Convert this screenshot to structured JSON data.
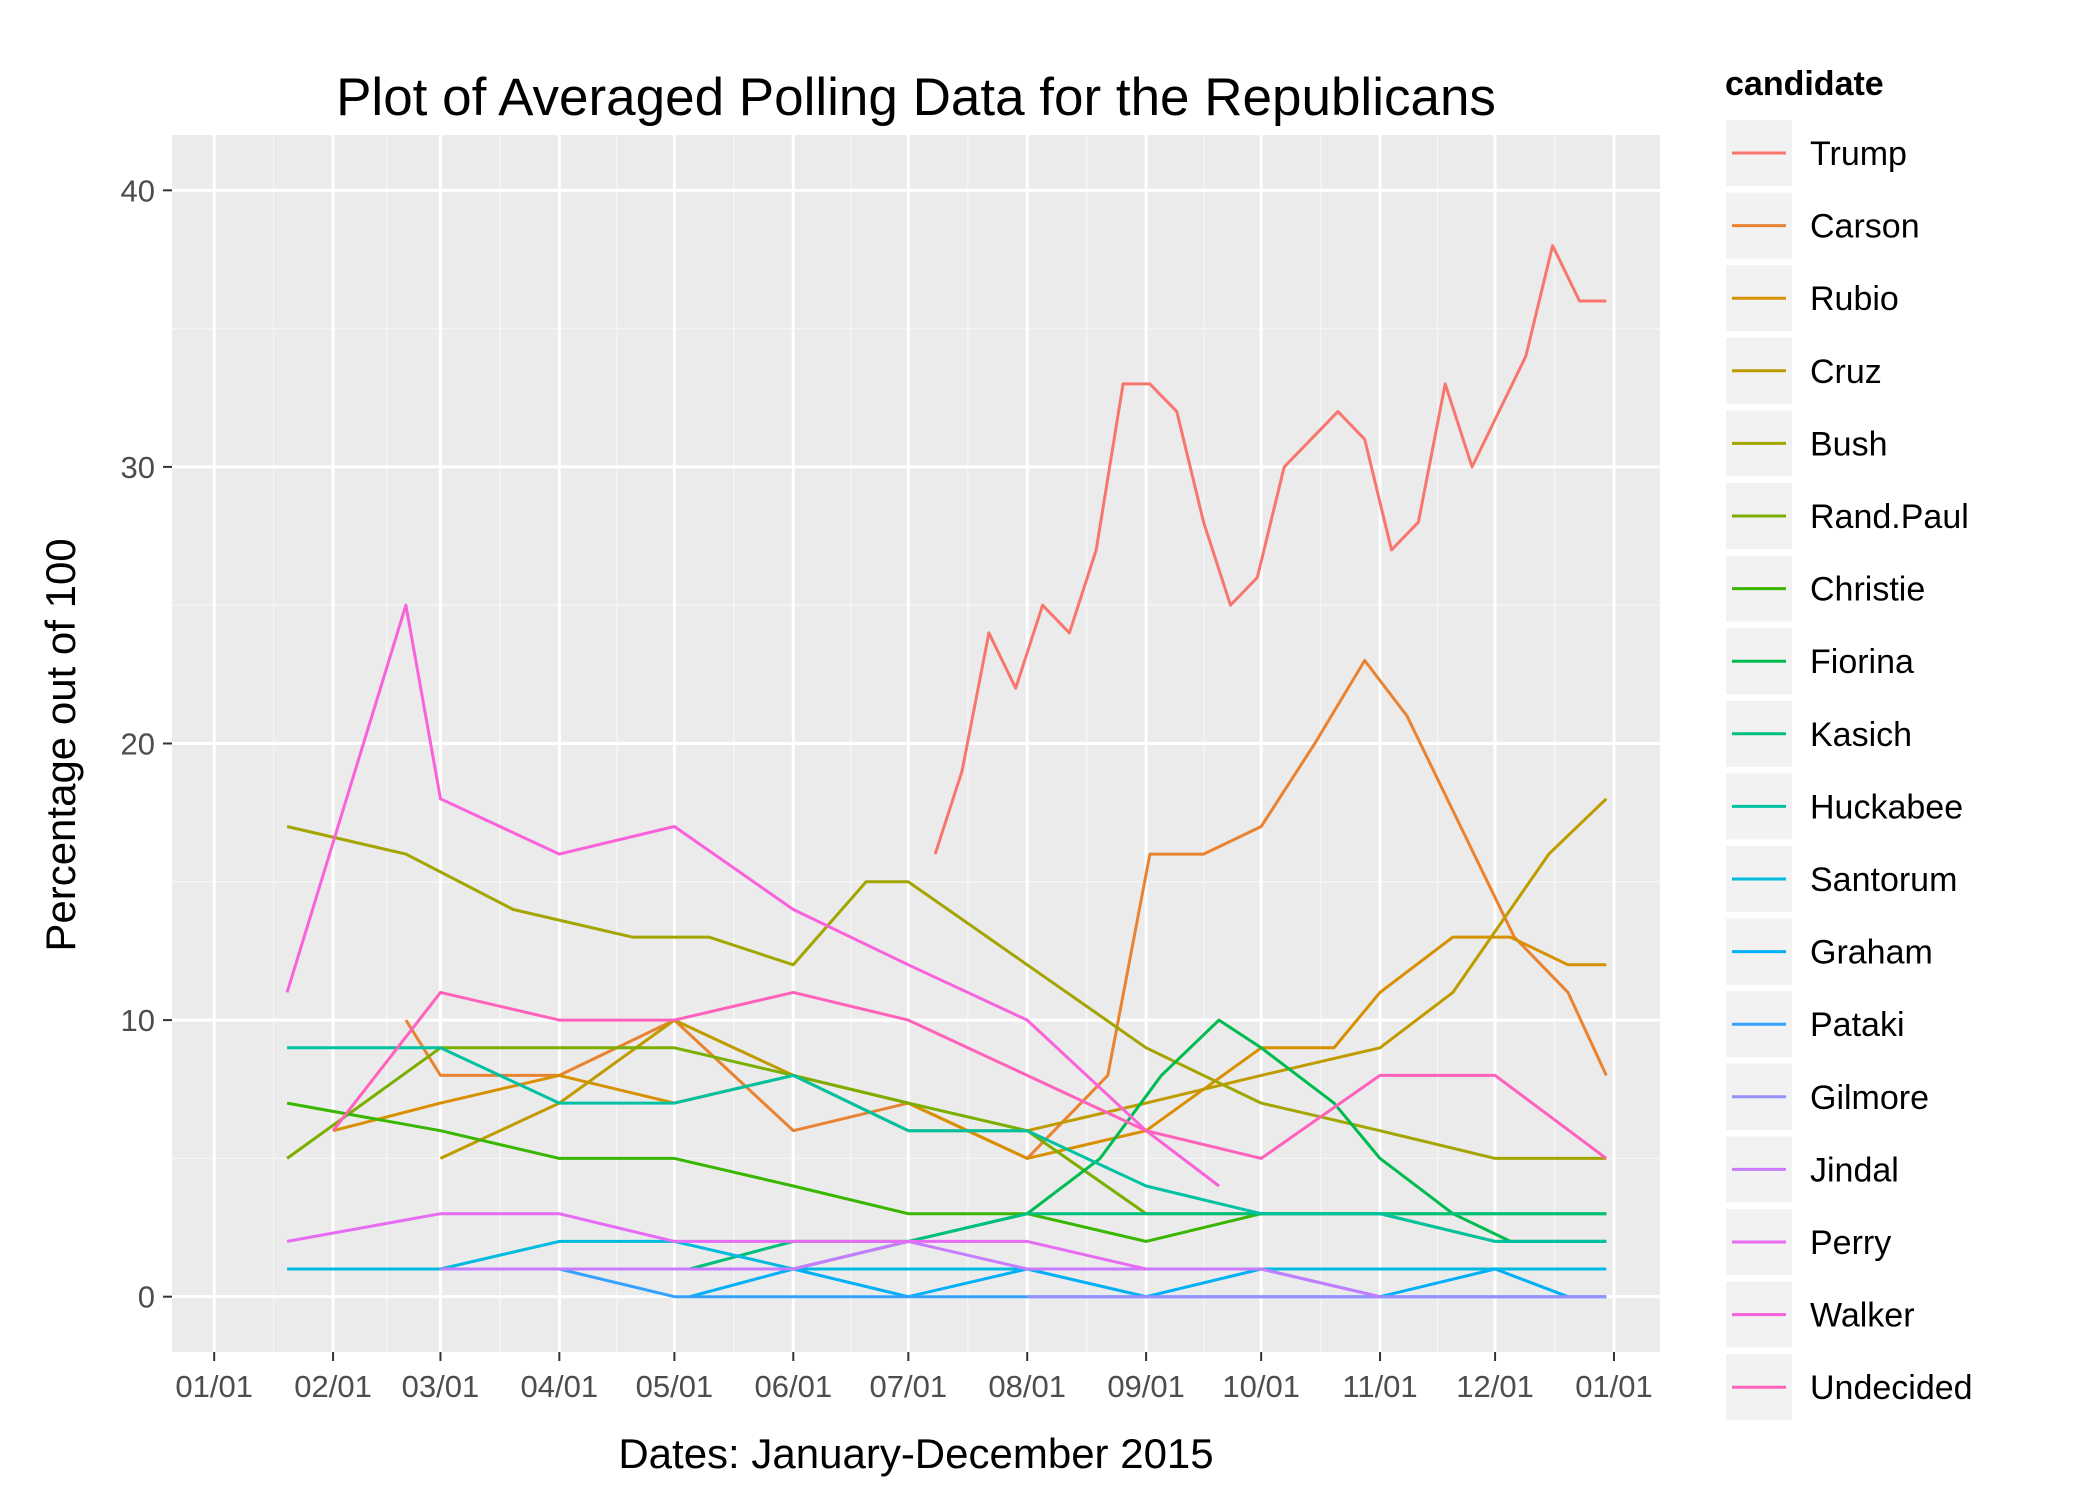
{
  "chart_data": {
    "type": "line",
    "title": "Plot of Averaged Polling Data for the Republicans",
    "xlabel": "Dates: January-December 2015",
    "ylabel": "Percentage out of 100",
    "x_range": [
      "2014-12-21",
      "2016-01-13"
    ],
    "ylim": [
      -2,
      42
    ],
    "x_ticks": [
      {
        "date": "2015-01-01",
        "label": "01/01"
      },
      {
        "date": "2015-02-01",
        "label": "02/01"
      },
      {
        "date": "2015-03-01",
        "label": "03/01"
      },
      {
        "date": "2015-04-01",
        "label": "04/01"
      },
      {
        "date": "2015-05-01",
        "label": "05/01"
      },
      {
        "date": "2015-06-01",
        "label": "06/01"
      },
      {
        "date": "2015-07-01",
        "label": "07/01"
      },
      {
        "date": "2015-08-01",
        "label": "08/01"
      },
      {
        "date": "2015-09-01",
        "label": "09/01"
      },
      {
        "date": "2015-10-01",
        "label": "10/01"
      },
      {
        "date": "2015-11-01",
        "label": "11/01"
      },
      {
        "date": "2015-12-01",
        "label": "12/01"
      },
      {
        "date": "2016-01-01",
        "label": "01/01"
      }
    ],
    "y_ticks": [
      0,
      10,
      20,
      30,
      40
    ],
    "grid": true,
    "legend": {
      "title": "candidate",
      "position": "right"
    },
    "series": [
      {
        "name": "Trump",
        "color": "#F8766D",
        "x": [
          "2015-07-08",
          "2015-07-15",
          "2015-07-22",
          "2015-07-29",
          "2015-08-05",
          "2015-08-12",
          "2015-08-19",
          "2015-08-26",
          "2015-09-02",
          "2015-09-09",
          "2015-09-16",
          "2015-09-23",
          "2015-09-30",
          "2015-10-07",
          "2015-10-14",
          "2015-10-21",
          "2015-10-28",
          "2015-11-04",
          "2015-11-11",
          "2015-11-18",
          "2015-11-25",
          "2015-12-02",
          "2015-12-09",
          "2015-12-16",
          "2015-12-23",
          "2015-12-30"
        ],
        "values": [
          16,
          19,
          24,
          22,
          25,
          24,
          27,
          33,
          33,
          32,
          28,
          25,
          26,
          30,
          31,
          32,
          31,
          27,
          28,
          33,
          30,
          32,
          34,
          38,
          36,
          36
        ]
      },
      {
        "name": "Carson",
        "color": "#EA8331",
        "x": [
          "2015-02-20",
          "2015-03-01",
          "2015-04-01",
          "2015-05-01",
          "2015-06-01",
          "2015-07-01",
          "2015-08-01",
          "2015-08-22",
          "2015-09-02",
          "2015-09-16",
          "2015-10-01",
          "2015-10-15",
          "2015-10-28",
          "2015-11-08",
          "2015-11-22",
          "2015-12-06",
          "2015-12-20",
          "2015-12-30"
        ],
        "values": [
          10,
          8,
          8,
          10,
          6,
          7,
          5,
          8,
          16,
          16,
          17,
          20,
          23,
          21,
          17,
          13,
          11,
          8
        ]
      },
      {
        "name": "Rubio",
        "color": "#D89000",
        "x": [
          "2015-02-01",
          "2015-03-01",
          "2015-04-01",
          "2015-05-01",
          "2015-06-01",
          "2015-07-01",
          "2015-08-01",
          "2015-09-01",
          "2015-10-01",
          "2015-10-20",
          "2015-11-01",
          "2015-11-20",
          "2015-12-05",
          "2015-12-20",
          "2015-12-30"
        ],
        "values": [
          6,
          7,
          8,
          7,
          8,
          7,
          5,
          6,
          9,
          9,
          11,
          13,
          13,
          12,
          12
        ]
      },
      {
        "name": "Cruz",
        "color": "#C09B00",
        "x": [
          "2015-03-01",
          "2015-04-01",
          "2015-05-01",
          "2015-06-01",
          "2015-07-01",
          "2015-08-01",
          "2015-09-01",
          "2015-10-01",
          "2015-11-01",
          "2015-11-20",
          "2015-12-05",
          "2015-12-15",
          "2015-12-30"
        ],
        "values": [
          5,
          7,
          10,
          8,
          6,
          6,
          7,
          8,
          9,
          11,
          14,
          16,
          18
        ]
      },
      {
        "name": "Bush",
        "color": "#A3A500",
        "x": [
          "2015-01-20",
          "2015-02-20",
          "2015-03-20",
          "2015-04-20",
          "2015-05-10",
          "2015-06-01",
          "2015-06-20",
          "2015-07-01",
          "2015-08-01",
          "2015-09-01",
          "2015-10-01",
          "2015-11-01",
          "2015-12-01",
          "2015-12-30"
        ],
        "values": [
          17,
          16,
          14,
          13,
          13,
          12,
          15,
          15,
          12,
          9,
          7,
          6,
          5,
          5
        ]
      },
      {
        "name": "Rand.Paul",
        "color": "#7CAE00",
        "x": [
          "2015-01-20",
          "2015-03-01",
          "2015-04-01",
          "2015-05-01",
          "2015-06-01",
          "2015-07-01",
          "2015-08-01",
          "2015-09-01",
          "2015-10-01",
          "2015-11-01",
          "2015-12-01",
          "2015-12-30"
        ],
        "values": [
          5,
          9,
          9,
          9,
          8,
          7,
          6,
          3,
          3,
          3,
          2,
          2
        ]
      },
      {
        "name": "Christie",
        "color": "#39B600",
        "x": [
          "2015-01-20",
          "2015-03-01",
          "2015-04-01",
          "2015-05-01",
          "2015-06-01",
          "2015-07-01",
          "2015-08-01",
          "2015-09-01",
          "2015-10-01",
          "2015-11-01",
          "2015-12-01",
          "2015-12-30"
        ],
        "values": [
          7,
          6,
          5,
          5,
          4,
          3,
          3,
          2,
          3,
          3,
          3,
          3
        ]
      },
      {
        "name": "Fiorina",
        "color": "#00BB4E",
        "x": [
          "2015-05-05",
          "2015-06-01",
          "2015-07-01",
          "2015-08-01",
          "2015-08-20",
          "2015-09-05",
          "2015-09-20",
          "2015-10-01",
          "2015-10-20",
          "2015-11-01",
          "2015-11-20",
          "2015-12-05",
          "2015-12-30"
        ],
        "values": [
          1,
          1,
          2,
          3,
          5,
          8,
          10,
          9,
          7,
          5,
          3,
          2,
          2
        ]
      },
      {
        "name": "Kasich",
        "color": "#00BF7D",
        "x": [
          "2015-05-05",
          "2015-06-01",
          "2015-07-01",
          "2015-08-01",
          "2015-09-01",
          "2015-10-01",
          "2015-11-01",
          "2015-12-01",
          "2015-12-30"
        ],
        "values": [
          1,
          2,
          2,
          3,
          3,
          3,
          3,
          3,
          3
        ]
      },
      {
        "name": "Huckabee",
        "color": "#00C1A3",
        "x": [
          "2015-01-20",
          "2015-03-01",
          "2015-04-01",
          "2015-05-01",
          "2015-06-01",
          "2015-07-01",
          "2015-08-01",
          "2015-09-01",
          "2015-10-01",
          "2015-11-01",
          "2015-12-01",
          "2015-12-30"
        ],
        "values": [
          9,
          9,
          7,
          7,
          8,
          6,
          6,
          4,
          3,
          3,
          2,
          2
        ]
      },
      {
        "name": "Santorum",
        "color": "#00BAE0",
        "x": [
          "2015-01-20",
          "2015-03-01",
          "2015-04-01",
          "2015-05-01",
          "2015-06-01",
          "2015-07-01",
          "2015-08-01",
          "2015-09-01",
          "2015-10-01",
          "2015-11-01",
          "2015-12-01",
          "2015-12-30"
        ],
        "values": [
          1,
          1,
          2,
          2,
          1,
          1,
          1,
          1,
          1,
          1,
          1,
          1
        ]
      },
      {
        "name": "Graham",
        "color": "#00B0F6",
        "x": [
          "2015-05-05",
          "2015-06-01",
          "2015-07-01",
          "2015-08-01",
          "2015-09-01",
          "2015-10-01",
          "2015-11-01",
          "2015-12-01",
          "2015-12-20"
        ],
        "values": [
          0,
          1,
          0,
          1,
          0,
          1,
          0,
          1,
          0
        ]
      },
      {
        "name": "Pataki",
        "color": "#35A2FF",
        "x": [
          "2015-04-01",
          "2015-05-01",
          "2015-06-01",
          "2015-07-01",
          "2015-08-01",
          "2015-09-01",
          "2015-10-01",
          "2015-11-01",
          "2015-12-01",
          "2015-12-30"
        ],
        "values": [
          1,
          0,
          0,
          0,
          0,
          0,
          0,
          0,
          0,
          0
        ]
      },
      {
        "name": "Gilmore",
        "color": "#9590FF",
        "x": [
          "2015-08-01",
          "2015-09-01",
          "2015-10-01",
          "2015-11-01",
          "2015-12-01",
          "2015-12-30"
        ],
        "values": [
          0,
          0,
          0,
          0,
          0,
          0
        ]
      },
      {
        "name": "Jindal",
        "color": "#C77CFF",
        "x": [
          "2015-03-01",
          "2015-04-01",
          "2015-05-01",
          "2015-06-01",
          "2015-07-01",
          "2015-08-01",
          "2015-09-01",
          "2015-10-01",
          "2015-11-01"
        ],
        "values": [
          1,
          1,
          1,
          1,
          2,
          1,
          1,
          1,
          0
        ]
      },
      {
        "name": "Perry",
        "color": "#E76BF3",
        "x": [
          "2015-01-20",
          "2015-03-01",
          "2015-04-01",
          "2015-05-01",
          "2015-06-01",
          "2015-07-01",
          "2015-08-01",
          "2015-09-01"
        ],
        "values": [
          2,
          3,
          3,
          2,
          2,
          2,
          2,
          1
        ]
      },
      {
        "name": "Walker",
        "color": "#FA62DB",
        "x": [
          "2015-01-20",
          "2015-02-20",
          "2015-03-01",
          "2015-04-01",
          "2015-05-01",
          "2015-06-01",
          "2015-07-01",
          "2015-08-01",
          "2015-09-01",
          "2015-09-20"
        ],
        "values": [
          11,
          25,
          18,
          16,
          17,
          14,
          12,
          10,
          6,
          4
        ]
      },
      {
        "name": "Undecided",
        "color": "#FF62BC",
        "x": [
          "2015-02-01",
          "2015-03-01",
          "2015-04-01",
          "2015-05-01",
          "2015-06-01",
          "2015-07-01",
          "2015-08-01",
          "2015-09-01",
          "2015-10-01",
          "2015-11-01",
          "2015-12-01",
          "2015-12-30"
        ],
        "values": [
          6,
          11,
          10,
          10,
          11,
          10,
          8,
          6,
          5,
          8,
          8,
          5
        ]
      }
    ]
  }
}
